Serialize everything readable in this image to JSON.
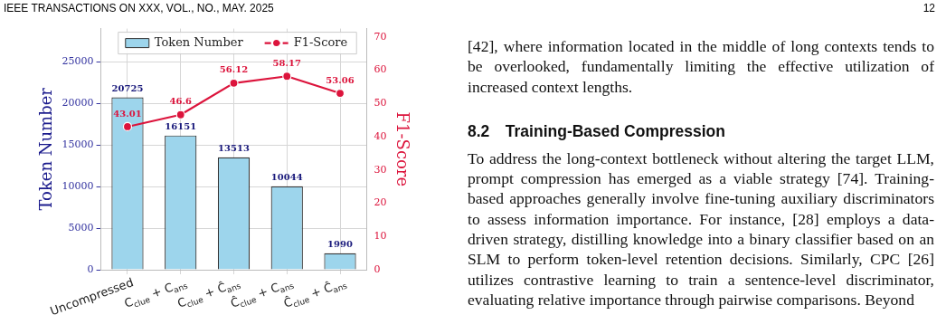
{
  "chart_data": {
    "type": "bar",
    "categories": [
      "Uncompressed",
      "C$_{clue}$ + C$_{ans}$",
      "C$_{clue}$ + Ĉ$_{ans}$",
      "Ĉ$_{clue}$ + C$_{ans}$",
      "Ĉ$_{clue}$ + Ĉ$_{ans}$"
    ],
    "series": [
      {
        "name": "Token Number",
        "color": "#9dd5ec",
        "values": [
          20725,
          16151,
          13513,
          10044,
          1990
        ]
      },
      {
        "name": "F1-Score",
        "type": "line",
        "axis": "y2",
        "color": "#dc143c",
        "values": [
          43.01,
          46.6,
          56.12,
          58.17,
          53.06
        ]
      }
    ],
    "ylabel": "Token Number",
    "y2label": "F1-Score",
    "ylim": [
      0,
      29000
    ],
    "yticks": [
      0,
      5000,
      10000,
      15000,
      20000,
      25000
    ],
    "y2lim": [
      0,
      72.5
    ],
    "y2ticks": [
      0,
      10,
      20,
      30,
      40,
      50,
      60,
      70
    ],
    "grid": true,
    "legend": "top",
    "marker": "circle",
    "data_labels": true,
    "annotations": [
      "IEEE TRANSACTIONS ON XXX, VOL., NO., MAY. 2025",
      "12",
      "[42], where information located in the middle of long contexts tends to be overlooked, fundamentally limiting the effective utilization of increased context lengths.",
      "8.2 Training-Based Compression",
      "To address the long-context bottleneck without altering the target LLM, prompt compression has emerged as a viable strategy [74]. Training-based approaches generally involve fine-tuning auxiliary discriminators to assess information importance. For instance, [28] employs a data-driven strategy, distilling knowledge into a binary classifier based on an SLM to perform token-level retention decisions. Similarly, CPC [26] utilizes contrastive learning to train a sentence-level discriminator, evaluating relative importance through pairwise comparisons. Beyond"
    ]
  }
}
